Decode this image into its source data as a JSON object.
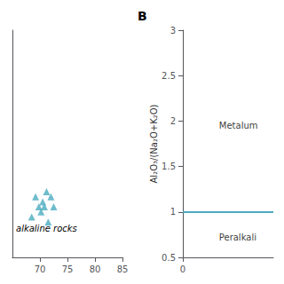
{
  "chart_data": [
    {
      "type": "scatter",
      "x": [
        68.5,
        69.2,
        69.8,
        70.2,
        70.5,
        70.8,
        71.2,
        71.5,
        72.0,
        72.5
      ],
      "values": [
        4.8,
        5.2,
        5.0,
        4.9,
        5.1,
        5.0,
        5.3,
        4.7,
        5.2,
        5.0
      ],
      "color": "#4AABBF",
      "marker": "triangle",
      "xlim": [
        65,
        85
      ],
      "ylim": [
        4.0,
        8.5
      ],
      "xticks": [
        70,
        75,
        80,
        85
      ],
      "yticks": [],
      "tick_labels": "x",
      "grid": false,
      "annotations": [
        {
          "text": "alkaline rocks"
        }
      ]
    },
    {
      "type": "line",
      "title": "B",
      "ylabel": "Al₂O₃/(Na₂O+K₂O)",
      "xlim": [
        0,
        20
      ],
      "ylim": [
        0.5,
        3.0
      ],
      "xticks": [
        0
      ],
      "yticks": [
        0.5,
        1,
        1.5,
        2,
        2.5,
        3
      ],
      "grid": false,
      "hlines": [
        {
          "y": 1.0,
          "color": "#4AABBF"
        }
      ],
      "annotations": [
        {
          "text": "Metalum",
          "x": 8,
          "y": 1.95
        },
        {
          "text": "Peralkali",
          "x": 8,
          "y": 0.72
        }
      ]
    }
  ]
}
